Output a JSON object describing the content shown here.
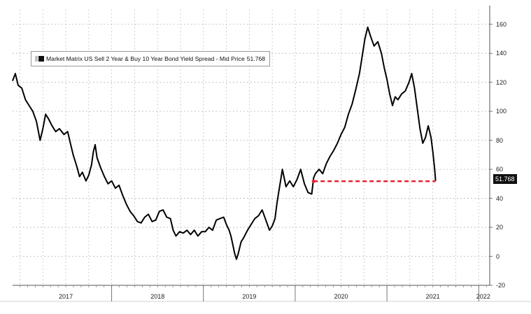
{
  "chart_data": {
    "type": "line",
    "legend": {
      "label": "Market Matrix US Sell 2 Year & Buy 10 Year Bond Yield Spread - Mid Price",
      "value": "51.768",
      "placement": "top-left"
    },
    "last_value_label": "51.768",
    "ylim": [
      -20,
      170
    ],
    "yticks": [
      160,
      140,
      120,
      100,
      80,
      60,
      40,
      20,
      0,
      -20
    ],
    "xlim": [
      2016.92,
      2022.12
    ],
    "xtick_labels": [
      {
        "label": "2017",
        "x": 2017.5
      },
      {
        "label": "2018",
        "x": 2018.5
      },
      {
        "label": "2019",
        "x": 2019.5
      },
      {
        "label": "2020",
        "x": 2020.5
      },
      {
        "label": "2021",
        "x": 2021.5
      },
      {
        "label": "2022",
        "x": 2022.05
      }
    ],
    "year_boundaries": [
      2018,
      2019,
      2020,
      2021,
      2022
    ],
    "grid": true,
    "series": [
      {
        "color": "#000000",
        "points": [
          [
            2016.92,
            121
          ],
          [
            2016.95,
            126
          ],
          [
            2016.98,
            118
          ],
          [
            2017.02,
            116
          ],
          [
            2017.06,
            108
          ],
          [
            2017.1,
            104
          ],
          [
            2017.14,
            100
          ],
          [
            2017.18,
            93
          ],
          [
            2017.22,
            80
          ],
          [
            2017.25,
            88
          ],
          [
            2017.28,
            98
          ],
          [
            2017.31,
            95
          ],
          [
            2017.35,
            90
          ],
          [
            2017.39,
            86
          ],
          [
            2017.43,
            88
          ],
          [
            2017.48,
            84
          ],
          [
            2017.52,
            86
          ],
          [
            2017.55,
            78
          ],
          [
            2017.58,
            70
          ],
          [
            2017.62,
            62
          ],
          [
            2017.65,
            55
          ],
          [
            2017.68,
            58
          ],
          [
            2017.72,
            52
          ],
          [
            2017.75,
            56
          ],
          [
            2017.78,
            63
          ],
          [
            2017.8,
            72
          ],
          [
            2017.82,
            77
          ],
          [
            2017.84,
            68
          ],
          [
            2017.88,
            61
          ],
          [
            2017.92,
            55
          ],
          [
            2017.96,
            50
          ],
          [
            2018.0,
            52
          ],
          [
            2018.04,
            47
          ],
          [
            2018.08,
            49
          ],
          [
            2018.12,
            42
          ],
          [
            2018.16,
            36
          ],
          [
            2018.2,
            31
          ],
          [
            2018.24,
            28
          ],
          [
            2018.28,
            24
          ],
          [
            2018.32,
            23
          ],
          [
            2018.36,
            27
          ],
          [
            2018.4,
            29
          ],
          [
            2018.44,
            24
          ],
          [
            2018.48,
            25
          ],
          [
            2018.52,
            31
          ],
          [
            2018.56,
            32
          ],
          [
            2018.6,
            27
          ],
          [
            2018.64,
            26
          ],
          [
            2018.67,
            18
          ],
          [
            2018.7,
            14
          ],
          [
            2018.74,
            17
          ],
          [
            2018.78,
            16
          ],
          [
            2018.82,
            18
          ],
          [
            2018.86,
            15
          ],
          [
            2018.9,
            18
          ],
          [
            2018.94,
            14
          ],
          [
            2018.98,
            17
          ],
          [
            2019.02,
            17
          ],
          [
            2019.06,
            20
          ],
          [
            2019.1,
            18
          ],
          [
            2019.14,
            25
          ],
          [
            2019.18,
            26
          ],
          [
            2019.22,
            27
          ],
          [
            2019.25,
            22
          ],
          [
            2019.28,
            18
          ],
          [
            2019.3,
            14
          ],
          [
            2019.32,
            8
          ],
          [
            2019.34,
            2
          ],
          [
            2019.36,
            -2
          ],
          [
            2019.38,
            2
          ],
          [
            2019.41,
            10
          ],
          [
            2019.44,
            13
          ],
          [
            2019.48,
            18
          ],
          [
            2019.52,
            22
          ],
          [
            2019.56,
            26
          ],
          [
            2019.6,
            28
          ],
          [
            2019.64,
            32
          ],
          [
            2019.68,
            25
          ],
          [
            2019.72,
            18
          ],
          [
            2019.75,
            21
          ],
          [
            2019.78,
            26
          ],
          [
            2019.8,
            36
          ],
          [
            2019.82,
            44
          ],
          [
            2019.84,
            52
          ],
          [
            2019.86,
            60
          ],
          [
            2019.88,
            54
          ],
          [
            2019.9,
            48
          ],
          [
            2019.94,
            52
          ],
          [
            2019.98,
            48
          ],
          [
            2020.02,
            53
          ],
          [
            2020.06,
            60
          ],
          [
            2020.1,
            50
          ],
          [
            2020.14,
            44
          ],
          [
            2020.18,
            43
          ],
          [
            2020.2,
            54
          ],
          [
            2020.22,
            57
          ],
          [
            2020.26,
            60
          ],
          [
            2020.3,
            57
          ],
          [
            2020.34,
            64
          ],
          [
            2020.38,
            69
          ],
          [
            2020.42,
            73
          ],
          [
            2020.46,
            78
          ],
          [
            2020.5,
            84
          ],
          [
            2020.54,
            89
          ],
          [
            2020.58,
            98
          ],
          [
            2020.62,
            105
          ],
          [
            2020.66,
            115
          ],
          [
            2020.7,
            126
          ],
          [
            2020.73,
            138
          ],
          [
            2020.76,
            150
          ],
          [
            2020.79,
            158
          ],
          [
            2020.82,
            152
          ],
          [
            2020.86,
            145
          ],
          [
            2020.9,
            148
          ],
          [
            2020.94,
            140
          ],
          [
            2020.97,
            130
          ],
          [
            2021.0,
            122
          ],
          [
            2021.03,
            112
          ],
          [
            2021.06,
            104
          ],
          [
            2021.09,
            110
          ],
          [
            2021.12,
            108
          ],
          [
            2021.16,
            112
          ],
          [
            2021.2,
            114
          ],
          [
            2021.24,
            120
          ],
          [
            2021.27,
            126
          ],
          [
            2021.3,
            116
          ],
          [
            2021.33,
            102
          ],
          [
            2021.36,
            88
          ],
          [
            2021.39,
            78
          ],
          [
            2021.42,
            82
          ],
          [
            2021.45,
            90
          ],
          [
            2021.48,
            82
          ],
          [
            2021.5,
            72
          ],
          [
            2021.52,
            60
          ],
          [
            2021.53,
            52
          ]
        ]
      }
    ],
    "reference_line": {
      "y": 51.768,
      "x_start": 2020.2,
      "x_end": 2021.53,
      "color": "#e8212e",
      "style": "dashed"
    }
  }
}
